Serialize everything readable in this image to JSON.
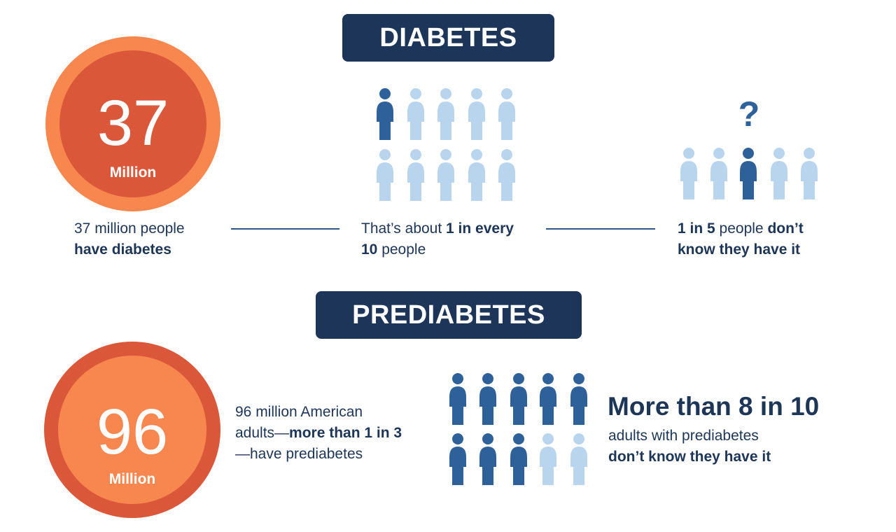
{
  "diabetes": {
    "banner": "DIABETES",
    "circle": {
      "number": "37",
      "unit": "Million"
    },
    "stat1": {
      "line1": "37 million people",
      "line2_bold": "have diabetes"
    },
    "stat2": {
      "pre": "That’s about ",
      "bold1": "1 in every",
      "bold2": "10",
      "post": " people"
    },
    "stat3": {
      "bold1": "1 in 5",
      "mid": " people ",
      "bold2": "don’t",
      "bold3": "know they have it"
    },
    "pictogram_1_in_10": {
      "highlighted": 1,
      "total": 10
    },
    "pictogram_1_in_5": {
      "highlighted": 1,
      "total": 5
    },
    "question_mark": "?"
  },
  "prediabetes": {
    "banner": "PREDIABETES",
    "circle": {
      "number": "96",
      "unit": "Million"
    },
    "stat1": {
      "line1": "96 million American",
      "pre2": "adults—",
      "bold2": "more than 1 in 3",
      "line3": "—have prediabetes"
    },
    "headline": "More than 8 in 10",
    "sub_line1": "adults with prediabetes",
    "sub_line2_bold": "don’t know they have it",
    "pictogram_8_in_10": {
      "highlighted": 8,
      "total": 10
    }
  },
  "colors": {
    "navy": "#1c3558",
    "person_dark": "#2e6099",
    "person_light": "#b9d5ee",
    "orange_light": "#f7874f",
    "orange_dark": "#db573a"
  },
  "icons": {
    "person": "person-icon",
    "question": "question-mark-icon"
  }
}
